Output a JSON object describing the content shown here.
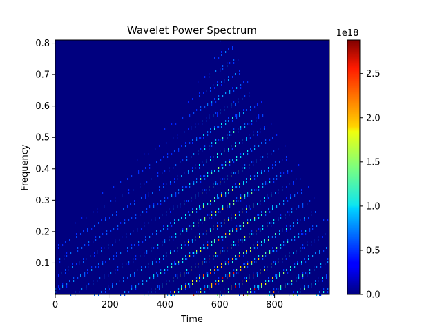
{
  "chart_data": {
    "type": "heatmap",
    "title": "Wavelet Power Spectrum",
    "xlabel": "Time",
    "ylabel": "Frequency",
    "xlim": [
      0,
      1000
    ],
    "ylim": [
      0.0,
      0.81
    ],
    "xticks": [
      0,
      200,
      400,
      600,
      800
    ],
    "xtick_labels": [
      "0",
      "200",
      "400",
      "600",
      "800"
    ],
    "yticks": [
      0.1,
      0.2,
      0.3,
      0.4,
      0.5,
      0.6,
      0.7,
      0.8
    ],
    "ytick_labels": [
      "0.1",
      "0.2",
      "0.3",
      "0.4",
      "0.5",
      "0.6",
      "0.7",
      "0.8"
    ],
    "colormap": "jet",
    "colorbar": {
      "range": [
        0.0,
        2.88e+18
      ],
      "ticks": [
        0.0,
        5e+17,
        1e+18,
        1.5e+18,
        2e+18,
        2.5e+18
      ],
      "tick_labels": [
        "0.0",
        "0.5",
        "1.0",
        "1.5",
        "2.0",
        "2.5"
      ],
      "offset_label": "1e18"
    },
    "features": {
      "apex_time": 625,
      "apex_frequency": 0.81,
      "peak_power_region": {
        "time": [
          580,
          720
        ],
        "frequency": [
          0.0,
          0.25
        ]
      },
      "diagonal_ridges": true
    },
    "grid": false,
    "legend": "none"
  }
}
